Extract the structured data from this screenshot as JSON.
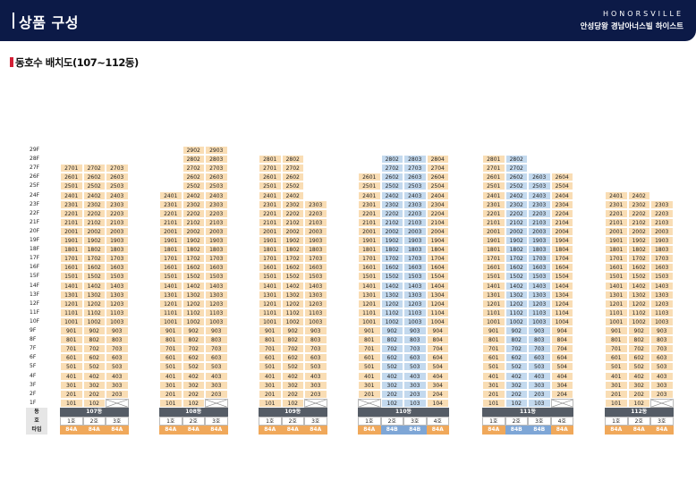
{
  "header": {
    "title": "상품 구성",
    "brand_en": "HONORSVILLE",
    "brand_kr": "안성당왕 경남아너스빌 하이스트"
  },
  "section_title": "동호수 배치도(107~112동)",
  "row_labels": {
    "dong": "동",
    "ho": "호",
    "type": "타입"
  },
  "floors": [
    "29F",
    "28F",
    "27F",
    "26F",
    "25F",
    "24F",
    "23F",
    "22F",
    "21F",
    "20F",
    "19F",
    "18F",
    "17F",
    "16F",
    "15F",
    "14F",
    "13F",
    "12F",
    "11F",
    "10F",
    "9F",
    "8F",
    "7F",
    "6F",
    "5F",
    "4F",
    "3F",
    "2F",
    "1F"
  ],
  "buildings": [
    {
      "name": "107동",
      "hos": [
        "1호",
        "2호",
        "3호"
      ],
      "types": [
        "84A",
        "84A",
        "84A"
      ],
      "type_colors": [
        "orange",
        "orange",
        "orange"
      ],
      "tops": [
        27,
        27,
        27
      ],
      "first_floor": [
        "101",
        "102",
        ""
      ]
    },
    {
      "name": "108동",
      "hos": [
        "1호",
        "2호",
        "3호"
      ],
      "types": [
        "84A",
        "84A",
        "84A"
      ],
      "type_colors": [
        "orange",
        "orange",
        "orange"
      ],
      "tops": [
        24,
        29,
        29
      ],
      "first_floor": [
        "101",
        "102",
        ""
      ]
    },
    {
      "name": "109동",
      "hos": [
        "1호",
        "2호",
        "3호"
      ],
      "types": [
        "84A",
        "84A",
        "84A"
      ],
      "type_colors": [
        "orange",
        "orange",
        "orange"
      ],
      "tops": [
        28,
        28,
        23
      ],
      "first_floor": [
        "101",
        "102",
        ""
      ]
    },
    {
      "name": "110동",
      "hos": [
        "1호",
        "2호",
        "3호",
        "4호"
      ],
      "types": [
        "84A",
        "84B",
        "84B",
        "84A"
      ],
      "type_colors": [
        "orange",
        "blue",
        "blue",
        "orange"
      ],
      "tops": [
        26,
        28,
        28,
        28
      ],
      "first_floor": [
        "",
        "102",
        "103",
        "104"
      ]
    },
    {
      "name": "111동",
      "hos": [
        "1호",
        "2호",
        "3호",
        "4호"
      ],
      "types": [
        "84A",
        "84B",
        "84B",
        "84A"
      ],
      "type_colors": [
        "orange",
        "blue",
        "blue",
        "orange"
      ],
      "tops": [
        28,
        28,
        26,
        26
      ],
      "first_floor": [
        "101",
        "102",
        "103",
        ""
      ]
    },
    {
      "name": "112동",
      "hos": [
        "1호",
        "2호",
        "3호"
      ],
      "types": [
        "84A",
        "84A",
        "84A"
      ],
      "type_colors": [
        "orange",
        "orange",
        "orange"
      ],
      "tops": [
        24,
        24,
        23
      ],
      "first_floor": [
        "101",
        "102",
        ""
      ]
    }
  ],
  "colors": {
    "unit_orange": "#f9ddb4",
    "unit_blue": "#c3d9ee",
    "type_orange": "#f0a85a",
    "type_blue": "#7ea6d6"
  }
}
